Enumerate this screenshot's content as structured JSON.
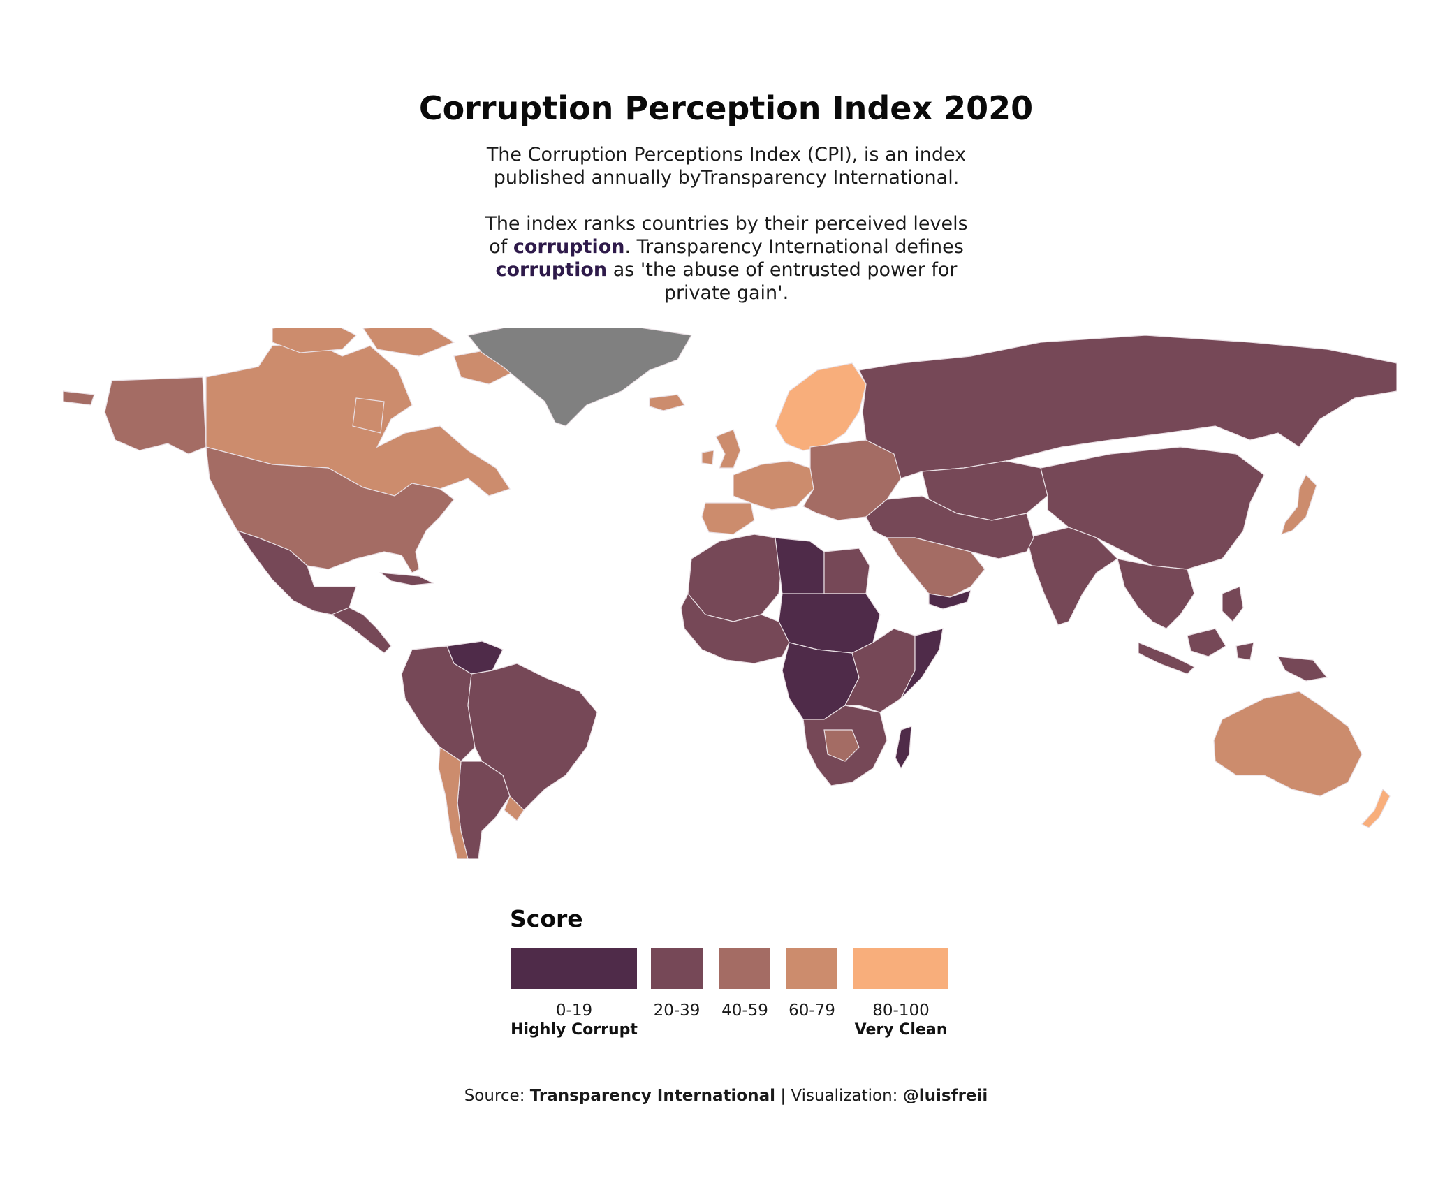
{
  "title": "Corruption Perception Index 2020",
  "subtitle": {
    "line1": "The Corruption Perceptions Index (CPI), is an index",
    "line2": "published annually byTransparency International.",
    "line3": "The index ranks countries by their perceived levels",
    "line4_pre": "of ",
    "highlight": "corruption",
    "line4_post": ". Transparency International defines",
    "line5_post": " as 'the abuse of entrusted power for",
    "line6": "private gain'."
  },
  "colors": {
    "highlight": "#2e1a4a",
    "no_data": "#808080",
    "background": "#ffffff"
  },
  "legend": {
    "title": "Score",
    "bins": [
      {
        "label": "0-19",
        "color": "#4f2b49"
      },
      {
        "label": "20-39",
        "color": "#764857"
      },
      {
        "label": "40-59",
        "color": "#a46c64"
      },
      {
        "label": "60-79",
        "color": "#cc8c6d"
      },
      {
        "label": "80-100",
        "color": "#f8ae7b"
      }
    ],
    "low_label": "Highly Corrupt",
    "high_label": "Very Clean"
  },
  "map_data": {
    "projection": "equirectangular",
    "regions": [
      {
        "name": "Alaska",
        "bin": 3
      },
      {
        "name": "Canada",
        "bin": 4
      },
      {
        "name": "Greenland",
        "bin": null
      },
      {
        "name": "United States",
        "bin": 3
      },
      {
        "name": "Mexico",
        "bin": 2
      },
      {
        "name": "Central America",
        "bin": 2
      },
      {
        "name": "Venezuela",
        "bin": 1
      },
      {
        "name": "Colombia / Peru",
        "bin": 2
      },
      {
        "name": "Brazil",
        "bin": 2
      },
      {
        "name": "Argentina",
        "bin": 2
      },
      {
        "name": "Chile",
        "bin": 4
      },
      {
        "name": "Uruguay",
        "bin": 4
      },
      {
        "name": "Iceland",
        "bin": 4
      },
      {
        "name": "Scandinavia",
        "bin": 5
      },
      {
        "name": "United Kingdom",
        "bin": 4
      },
      {
        "name": "Western Europe",
        "bin": 4
      },
      {
        "name": "Iberia",
        "bin": 4
      },
      {
        "name": "Eastern Europe",
        "bin": 3
      },
      {
        "name": "Russia",
        "bin": 2
      },
      {
        "name": "Central Asia",
        "bin": 2
      },
      {
        "name": "China",
        "bin": 2
      },
      {
        "name": "Japan",
        "bin": 4
      },
      {
        "name": "India",
        "bin": 2
      },
      {
        "name": "Middle East",
        "bin": 2
      },
      {
        "name": "Saudi Arabia",
        "bin": 3
      },
      {
        "name": "Yemen",
        "bin": 1
      },
      {
        "name": "North Africa",
        "bin": 2
      },
      {
        "name": "Libya",
        "bin": 1
      },
      {
        "name": "Egypt",
        "bin": 2
      },
      {
        "name": "Sudan / Chad",
        "bin": 1
      },
      {
        "name": "West Africa",
        "bin": 2
      },
      {
        "name": "Central Africa",
        "bin": 1
      },
      {
        "name": "East Africa",
        "bin": 2
      },
      {
        "name": "Somalia",
        "bin": 1
      },
      {
        "name": "Southern Africa",
        "bin": 2
      },
      {
        "name": "Botswana",
        "bin": 3
      },
      {
        "name": "Madagascar",
        "bin": 1
      },
      {
        "name": "Southeast Asia",
        "bin": 2
      },
      {
        "name": "Indonesia",
        "bin": 2
      },
      {
        "name": "Papua New Guinea",
        "bin": 2
      },
      {
        "name": "Australia",
        "bin": 4
      },
      {
        "name": "New Zealand",
        "bin": 5
      }
    ]
  },
  "source": {
    "prefix": "Source: ",
    "org": "Transparency International",
    "sep": " | Visualization: ",
    "author": "@luisfreii"
  }
}
